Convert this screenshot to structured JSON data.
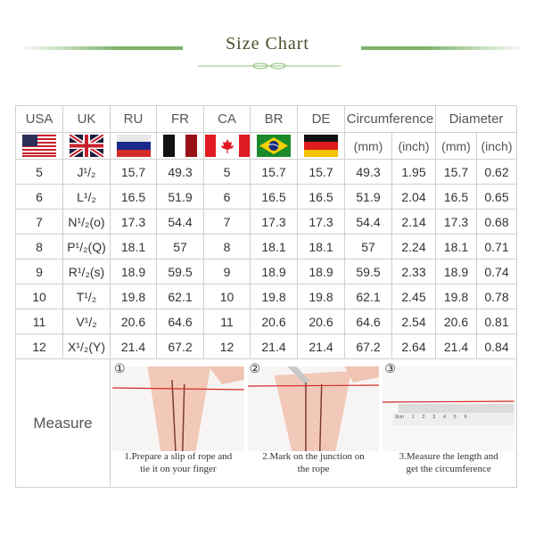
{
  "title": "Size Chart",
  "headers": [
    "USA",
    "UK",
    "RU",
    "FR",
    "CA",
    "BR",
    "DE",
    "Circumference",
    "Diameter"
  ],
  "units": [
    "(mm)",
    "(inch)",
    "(mm)",
    "(inch)"
  ],
  "flags": [
    "usa-flag",
    "uk-flag",
    "russia-flag",
    "france-flag",
    "canada-flag",
    "brazil-flag",
    "germany-flag"
  ],
  "rows": [
    [
      "5",
      "J¹/₂",
      "15.7",
      "49.3",
      "5",
      "15.7",
      "15.7",
      "49.3",
      "1.95",
      "15.7",
      "0.62"
    ],
    [
      "6",
      "L¹/₂",
      "16.5",
      "51.9",
      "6",
      "16.5",
      "16.5",
      "51.9",
      "2.04",
      "16.5",
      "0.65"
    ],
    [
      "7",
      "N¹/₂(o)",
      "17.3",
      "54.4",
      "7",
      "17.3",
      "17.3",
      "54.4",
      "2.14",
      "17.3",
      "0.68"
    ],
    [
      "8",
      "P¹/₂(Q)",
      "18.1",
      "57",
      "8",
      "18.1",
      "18.1",
      "57",
      "2.24",
      "18.1",
      "0.71"
    ],
    [
      "9",
      "R¹/₂(s)",
      "18.9",
      "59.5",
      "9",
      "18.9",
      "18.9",
      "59.5",
      "2.33",
      "18.9",
      "0.74"
    ],
    [
      "10",
      "T¹/₂",
      "19.8",
      "62.1",
      "10",
      "19.8",
      "19.8",
      "62.1",
      "2.45",
      "19.8",
      "0.78"
    ],
    [
      "11",
      "V¹/₂",
      "20.6",
      "64.6",
      "11",
      "20.6",
      "20.6",
      "64.6",
      "2.54",
      "20.6",
      "0.81"
    ],
    [
      "12",
      "X¹/₂(Y)",
      "21.4",
      "67.2",
      "12",
      "21.4",
      "21.4",
      "67.2",
      "2.64",
      "21.4",
      "0.84"
    ]
  ],
  "measure": {
    "label": "Measure",
    "steps": [
      {
        "num": "①",
        "caption": "1.Prepare a slip of rope and tie it on your finger"
      },
      {
        "num": "②",
        "caption": "2.Mark on the junction on the rope"
      },
      {
        "num": "③",
        "caption": "3.Measure the length and get the circumference"
      }
    ],
    "ruler_labels": [
      "0cm",
      "1",
      "2",
      "3",
      "4",
      "5",
      "6"
    ]
  },
  "colors": {
    "accent_green": "#7cb46a",
    "rope_red": "#d42a2a"
  }
}
